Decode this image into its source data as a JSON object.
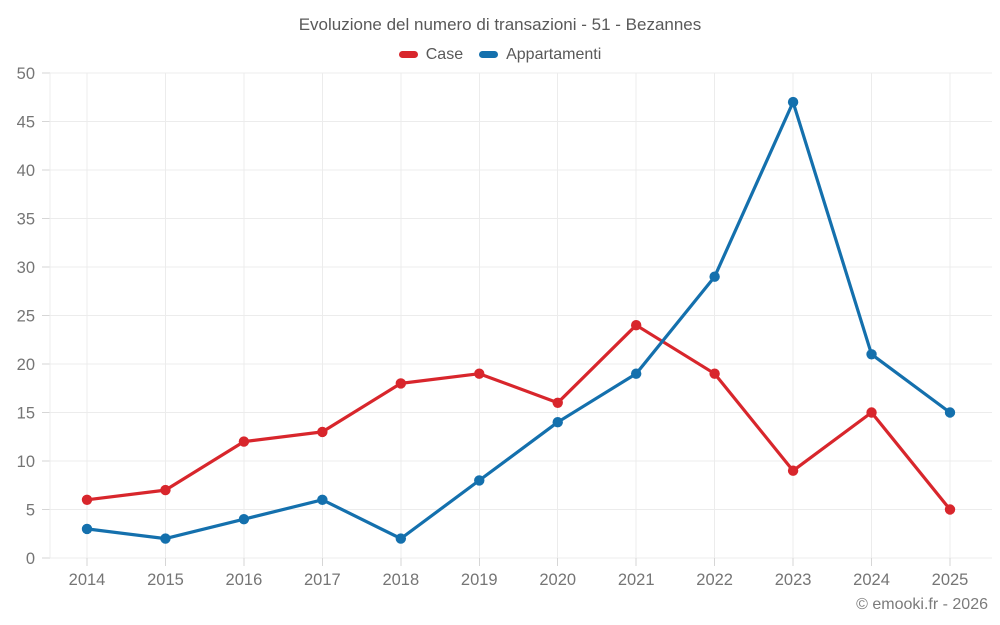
{
  "colors": {
    "case_red": "#d8262c",
    "appartamenti_blue": "#1470ad",
    "grid": "#ececec",
    "axis_tick": "#d6d6d6",
    "tick_text": "#757575",
    "title_text": "#595959",
    "watermark_text": "#7b7b7b",
    "background": "#ffffff"
  },
  "chart_data": {
    "type": "line",
    "title": "Evoluzione del numero di transazioni - 51 - Bezannes",
    "categories": [
      "2014",
      "2015",
      "2016",
      "2017",
      "2018",
      "2019",
      "2020",
      "2021",
      "2022",
      "2023",
      "2024",
      "2025"
    ],
    "series": [
      {
        "name": "Case",
        "color": "#d8262c",
        "values": [
          6,
          7,
          12,
          13,
          18,
          19,
          16,
          24,
          19,
          9,
          15,
          5
        ]
      },
      {
        "name": "Appartamenti",
        "color": "#1470ad",
        "values": [
          3,
          2,
          4,
          6,
          2,
          8,
          14,
          19,
          29,
          47,
          21,
          15
        ]
      }
    ],
    "xlabel": "",
    "ylabel": "",
    "ylim": [
      0,
      50
    ],
    "ytick_step": 5,
    "yticks": [
      0,
      5,
      10,
      15,
      20,
      25,
      30,
      35,
      40,
      45,
      50
    ],
    "grid": true,
    "legend_position": "top",
    "marker": "circle",
    "watermark": "© emooki.fr - 2026"
  }
}
